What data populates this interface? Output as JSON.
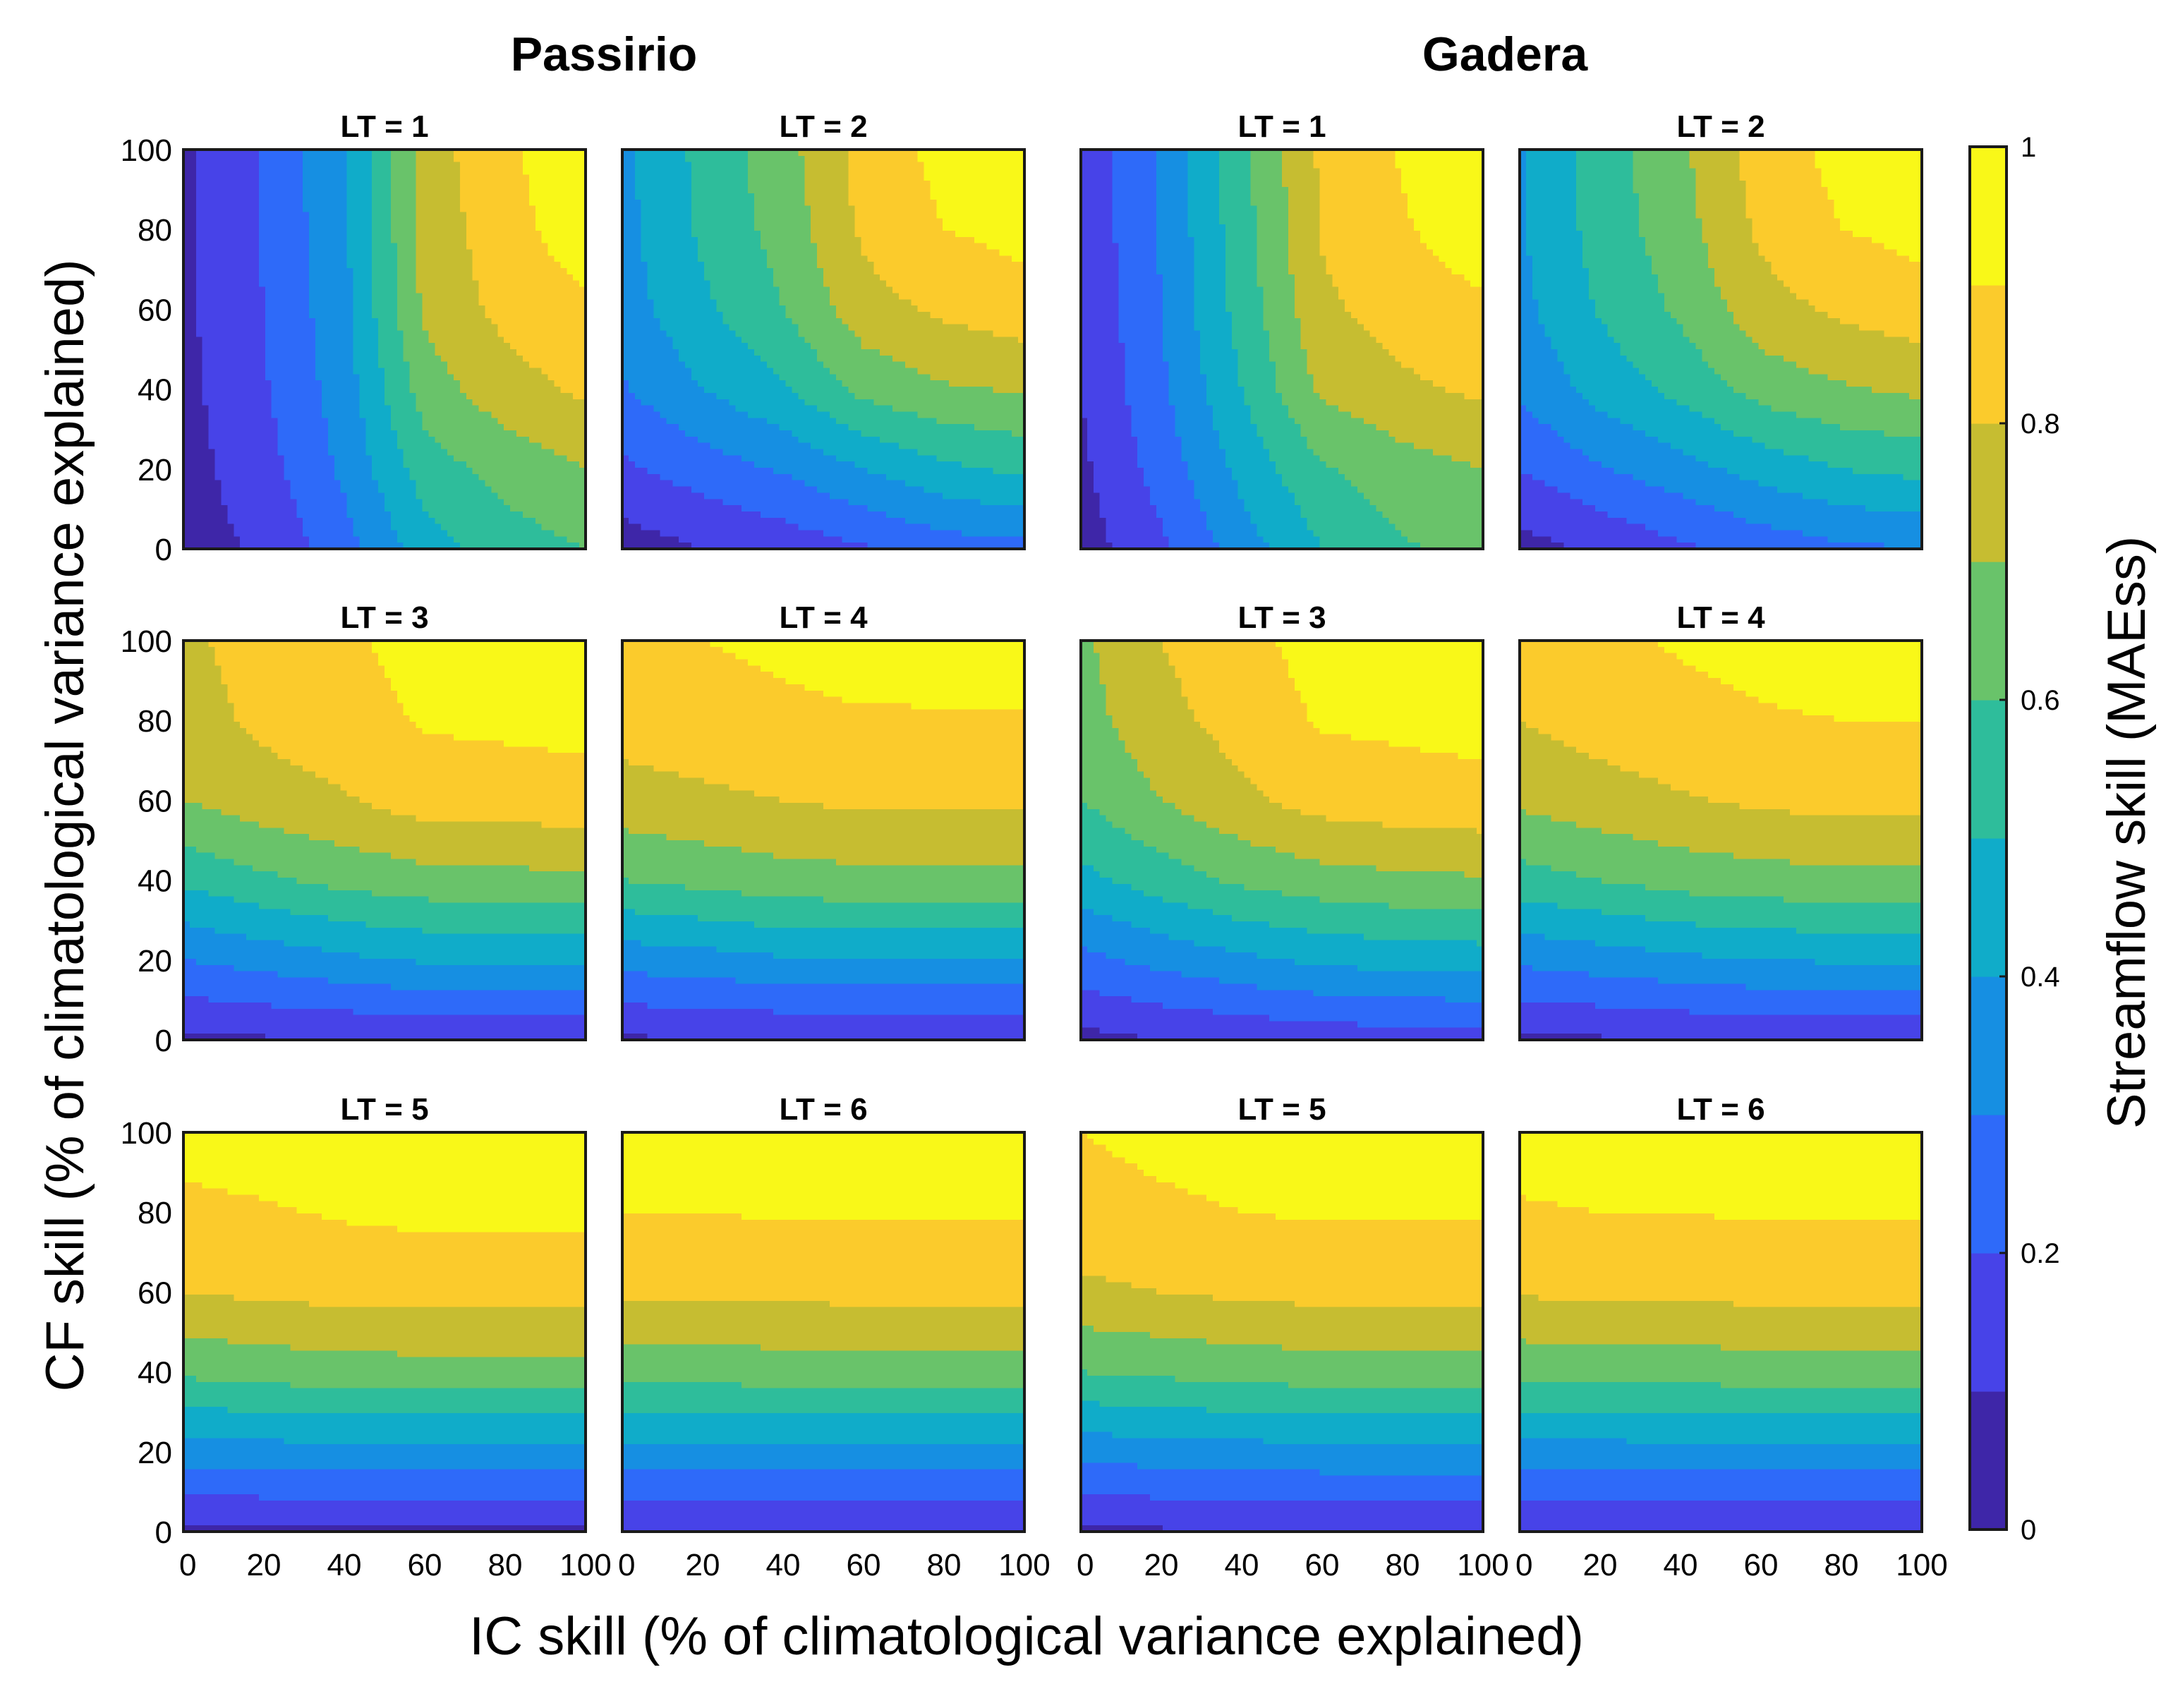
{
  "chart_data": {
    "type": "contour",
    "catchments": [
      {
        "name": "Passirio",
        "panels": [
          {
            "title": "LT = 1",
            "lt": 1,
            "grid": [
              [
                0.05,
                0.12,
                0.26,
                0.45,
                0.55,
                0.6
              ],
              [
                0.06,
                0.16,
                0.32,
                0.55,
                0.64,
                0.7
              ],
              [
                0.07,
                0.19,
                0.35,
                0.65,
                0.76,
                0.82
              ],
              [
                0.08,
                0.2,
                0.37,
                0.72,
                0.83,
                0.88
              ],
              [
                0.08,
                0.21,
                0.38,
                0.74,
                0.86,
                0.96
              ],
              [
                0.08,
                0.21,
                0.39,
                0.75,
                0.88,
                0.98
              ]
            ]
          },
          {
            "title": "LT = 2",
            "lt": 2,
            "grid": [
              [
                0.05,
                0.1,
                0.14,
                0.19,
                0.25,
                0.27
              ],
              [
                0.18,
                0.25,
                0.31,
                0.4,
                0.48,
                0.52
              ],
              [
                0.29,
                0.4,
                0.49,
                0.63,
                0.69,
                0.71
              ],
              [
                0.35,
                0.48,
                0.6,
                0.76,
                0.82,
                0.86
              ],
              [
                0.37,
                0.52,
                0.64,
                0.82,
                0.9,
                0.93
              ],
              [
                0.37,
                0.53,
                0.66,
                0.84,
                0.93,
                0.98
              ]
            ]
          },
          {
            "title": "LT = 3",
            "lt": 3,
            "grid": [
              [
                0.08,
                0.09,
                0.1,
                0.11,
                0.11,
                0.11
              ],
              [
                0.3,
                0.34,
                0.38,
                0.41,
                0.42,
                0.42
              ],
              [
                0.52,
                0.58,
                0.63,
                0.66,
                0.67,
                0.68
              ],
              [
                0.7,
                0.76,
                0.79,
                0.85,
                0.85,
                0.86
              ],
              [
                0.76,
                0.82,
                0.86,
                0.91,
                0.92,
                0.93
              ],
              [
                0.78,
                0.84,
                0.88,
                0.94,
                0.96,
                0.98
              ]
            ]
          },
          {
            "title": "LT = 4",
            "lt": 4,
            "grid": [
              [
                0.09,
                0.09,
                0.1,
                0.1,
                0.1,
                0.1
              ],
              [
                0.34,
                0.36,
                0.39,
                0.4,
                0.4,
                0.4
              ],
              [
                0.6,
                0.63,
                0.66,
                0.67,
                0.67,
                0.67
              ],
              [
                0.76,
                0.78,
                0.8,
                0.82,
                0.82,
                0.82
              ],
              [
                0.84,
                0.86,
                0.88,
                0.89,
                0.89,
                0.89
              ],
              [
                0.88,
                0.9,
                0.92,
                0.94,
                0.95,
                0.96
              ]
            ]
          },
          {
            "title": "LT = 5",
            "lt": 5,
            "grid": [
              [
                0.08,
                0.08,
                0.08,
                0.08,
                0.08,
                0.08
              ],
              [
                0.35,
                0.36,
                0.37,
                0.37,
                0.37,
                0.37
              ],
              [
                0.62,
                0.64,
                0.66,
                0.66,
                0.66,
                0.66
              ],
              [
                0.8,
                0.82,
                0.83,
                0.84,
                0.84,
                0.84
              ],
              [
                0.88,
                0.89,
                0.91,
                0.92,
                0.92,
                0.92
              ],
              [
                0.93,
                0.95,
                0.97,
                0.98,
                0.98,
                0.98
              ]
            ]
          },
          {
            "title": "LT = 6",
            "lt": 6,
            "grid": [
              [
                0.09,
                0.09,
                0.09,
                0.09,
                0.09,
                0.09
              ],
              [
                0.37,
                0.37,
                0.37,
                0.37,
                0.37,
                0.37
              ],
              [
                0.64,
                0.64,
                0.65,
                0.65,
                0.65,
                0.65
              ],
              [
                0.82,
                0.82,
                0.82,
                0.83,
                0.83,
                0.83
              ],
              [
                0.9,
                0.9,
                0.91,
                0.91,
                0.91,
                0.91
              ],
              [
                0.96,
                0.96,
                0.96,
                0.96,
                0.96,
                0.96
              ]
            ]
          }
        ]
      },
      {
        "name": "Gadera",
        "panels": [
          {
            "title": "LT = 1",
            "lt": 1,
            "grid": [
              [
                0.05,
                0.18,
                0.35,
                0.5,
                0.59,
                0.62
              ],
              [
                0.08,
                0.24,
                0.43,
                0.59,
                0.66,
                0.7
              ],
              [
                0.1,
                0.28,
                0.5,
                0.72,
                0.78,
                0.82
              ],
              [
                0.11,
                0.3,
                0.54,
                0.78,
                0.85,
                0.88
              ],
              [
                0.12,
                0.31,
                0.56,
                0.81,
                0.89,
                0.96
              ],
              [
                0.12,
                0.31,
                0.57,
                0.82,
                0.91,
                0.98
              ]
            ]
          },
          {
            "title": "LT = 2",
            "lt": 2,
            "grid": [
              [
                0.06,
                0.12,
                0.18,
                0.24,
                0.28,
                0.3
              ],
              [
                0.2,
                0.29,
                0.36,
                0.44,
                0.5,
                0.53
              ],
              [
                0.32,
                0.44,
                0.53,
                0.64,
                0.69,
                0.72
              ],
              [
                0.37,
                0.51,
                0.62,
                0.76,
                0.82,
                0.86
              ],
              [
                0.39,
                0.54,
                0.66,
                0.82,
                0.9,
                0.93
              ],
              [
                0.39,
                0.55,
                0.68,
                0.85,
                0.93,
                0.98
              ]
            ]
          },
          {
            "title": "LT = 3",
            "lt": 3,
            "grid": [
              [
                0.07,
                0.1,
                0.12,
                0.14,
                0.15,
                0.15
              ],
              [
                0.27,
                0.33,
                0.38,
                0.42,
                0.44,
                0.45
              ],
              [
                0.47,
                0.55,
                0.62,
                0.66,
                0.68,
                0.69
              ],
              [
                0.6,
                0.7,
                0.78,
                0.84,
                0.86,
                0.87
              ],
              [
                0.66,
                0.77,
                0.84,
                0.91,
                0.92,
                0.93
              ],
              [
                0.68,
                0.8,
                0.87,
                0.94,
                0.96,
                0.98
              ]
            ]
          },
          {
            "title": "LT = 4",
            "lt": 4,
            "grid": [
              [
                0.08,
                0.09,
                0.1,
                0.11,
                0.11,
                0.11
              ],
              [
                0.32,
                0.35,
                0.38,
                0.4,
                0.41,
                0.41
              ],
              [
                0.56,
                0.6,
                0.64,
                0.66,
                0.67,
                0.67
              ],
              [
                0.72,
                0.76,
                0.79,
                0.82,
                0.83,
                0.83
              ],
              [
                0.8,
                0.84,
                0.87,
                0.89,
                0.9,
                0.9
              ],
              [
                0.84,
                0.88,
                0.91,
                0.93,
                0.95,
                0.96
              ]
            ]
          },
          {
            "title": "LT = 5",
            "lt": 5,
            "grid": [
              [
                0.08,
                0.09,
                0.09,
                0.1,
                0.1,
                0.1
              ],
              [
                0.34,
                0.35,
                0.36,
                0.37,
                0.37,
                0.37
              ],
              [
                0.6,
                0.62,
                0.64,
                0.65,
                0.65,
                0.65
              ],
              [
                0.78,
                0.8,
                0.82,
                0.83,
                0.83,
                0.83
              ],
              [
                0.86,
                0.88,
                0.9,
                0.91,
                0.91,
                0.91
              ],
              [
                0.9,
                0.93,
                0.95,
                0.96,
                0.97,
                0.98
              ]
            ]
          },
          {
            "title": "LT = 6",
            "lt": 6,
            "grid": [
              [
                0.09,
                0.09,
                0.09,
                0.09,
                0.09,
                0.09
              ],
              [
                0.36,
                0.36,
                0.37,
                0.37,
                0.37,
                0.37
              ],
              [
                0.63,
                0.64,
                0.64,
                0.65,
                0.65,
                0.65
              ],
              [
                0.81,
                0.82,
                0.82,
                0.83,
                0.83,
                0.83
              ],
              [
                0.89,
                0.9,
                0.9,
                0.91,
                0.91,
                0.91
              ],
              [
                0.94,
                0.95,
                0.96,
                0.96,
                0.96,
                0.96
              ]
            ]
          }
        ]
      }
    ],
    "grid_x": [
      0,
      20,
      40,
      60,
      80,
      100
    ],
    "grid_y": [
      0,
      20,
      40,
      60,
      80,
      100
    ],
    "x_ticks": [
      "0",
      "20",
      "40",
      "60",
      "80",
      "100"
    ],
    "y_ticks": [
      "0",
      "20",
      "40",
      "60",
      "80",
      "100"
    ],
    "xlim": [
      0,
      100
    ],
    "ylim": [
      0,
      100
    ],
    "xlabel": "IC skill (% of climatological variance explained)",
    "ylabel": "CF skill (% of climatological variance explained)",
    "levels": [
      0,
      0.1,
      0.2,
      0.3,
      0.4,
      0.5,
      0.6,
      0.7,
      0.8,
      0.9,
      1.0
    ],
    "level_colors": [
      "#3e26a8",
      "#4743e8",
      "#2e6af9",
      "#168fe2",
      "#10acc9",
      "#2ebd9b",
      "#69c36a",
      "#c6bd31",
      "#fbcb2c",
      "#f9f818"
    ],
    "colorbar": {
      "label": "Streamflow skill (MAEss)",
      "ticks": [
        "0",
        "0.2",
        "0.4",
        "0.6",
        "0.8",
        "1"
      ],
      "tick_values": [
        0,
        0.2,
        0.4,
        0.6,
        0.8,
        1.0
      ],
      "range": [
        0,
        1
      ]
    }
  }
}
